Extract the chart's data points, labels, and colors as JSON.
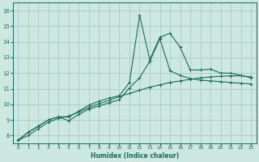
{
  "title": "",
  "xlabel": "Humidex (Indice chaleur)",
  "bg_color": "#cce8e0",
  "grid_color": "#aaccc4",
  "line_color": "#1a6b5a",
  "xlim": [
    -0.5,
    23.5
  ],
  "ylim": [
    7.5,
    16.5
  ],
  "xticks": [
    0,
    1,
    2,
    3,
    4,
    5,
    6,
    7,
    8,
    9,
    10,
    11,
    12,
    13,
    14,
    15,
    16,
    17,
    18,
    19,
    20,
    21,
    22,
    23
  ],
  "yticks": [
    8,
    9,
    10,
    11,
    12,
    13,
    14,
    15,
    16
  ],
  "line1_y": [
    7.7,
    8.2,
    8.6,
    9.0,
    9.2,
    9.2,
    9.55,
    9.95,
    10.2,
    10.4,
    10.55,
    11.4,
    15.7,
    12.85,
    14.3,
    14.55,
    13.65,
    12.2,
    12.2,
    12.25,
    12.0,
    12.0,
    11.85,
    11.7
  ],
  "line2_y": [
    7.7,
    8.2,
    8.6,
    9.0,
    9.2,
    8.95,
    9.35,
    9.7,
    9.9,
    10.1,
    10.3,
    11.05,
    11.7,
    12.75,
    14.2,
    12.15,
    11.85,
    11.65,
    11.55,
    11.5,
    11.45,
    11.4,
    11.35,
    11.3
  ],
  "line3_y": [
    7.7,
    8.0,
    8.45,
    8.85,
    9.1,
    9.25,
    9.5,
    9.8,
    10.05,
    10.25,
    10.5,
    10.7,
    10.9,
    11.1,
    11.25,
    11.4,
    11.5,
    11.6,
    11.7,
    11.75,
    11.8,
    11.82,
    11.83,
    11.75
  ]
}
